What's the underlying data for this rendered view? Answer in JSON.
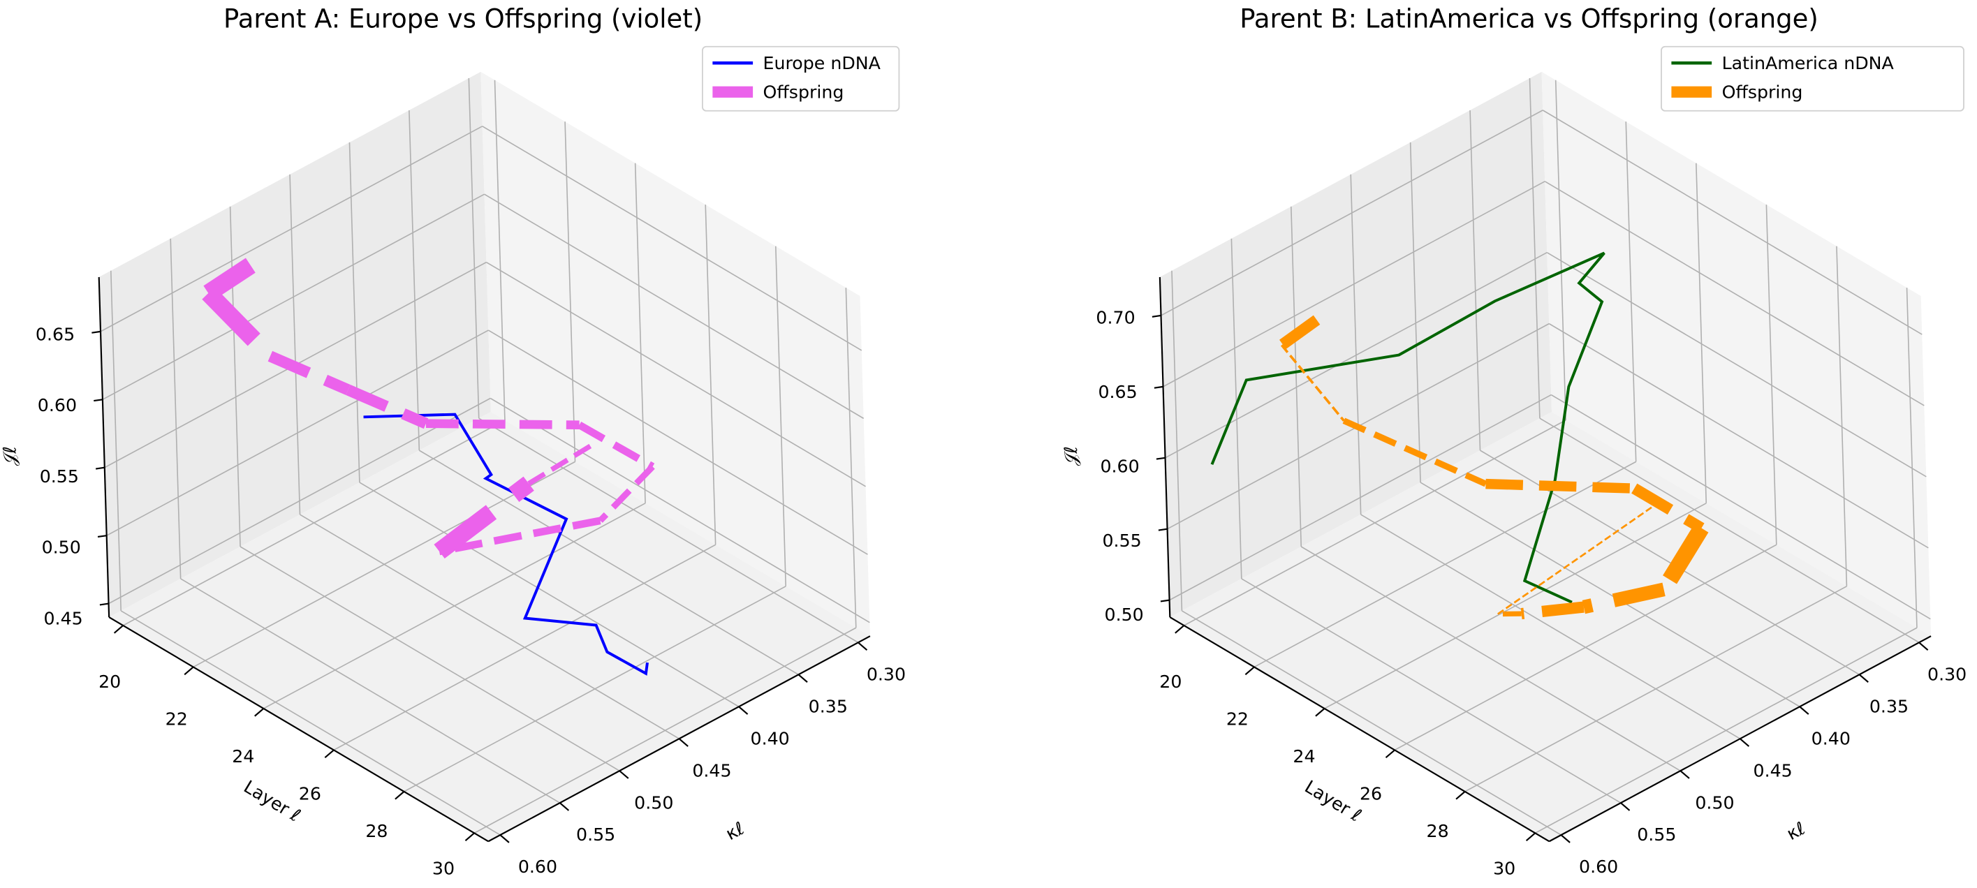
{
  "chart_data": [
    {
      "type": "line3d",
      "title": "Parent A: Europe  vs Offspring (violet)",
      "xlabel": "Layer ℓ",
      "ylabel": "κℓ",
      "zlabel": "𝒥ℓ",
      "xlim": [
        19.6,
        30.4
      ],
      "ylim": [
        0.29,
        0.61
      ],
      "zlim": [
        0.44,
        0.69
      ],
      "xticks": [
        "20",
        "22",
        "24",
        "26",
        "28",
        "30"
      ],
      "yticks": [
        "0.30",
        "0.35",
        "0.40",
        "0.45",
        "0.50",
        "0.55",
        "0.60"
      ],
      "zticks": [
        "0.45",
        "0.50",
        "0.55",
        "0.60",
        "0.65"
      ],
      "grid": true,
      "legend": "top-right",
      "series": [
        {
          "name": "Europe nDNA",
          "color": "#0000ff",
          "style": "solid",
          "layer": [
            21,
            22,
            23,
            24,
            25,
            26,
            27,
            28,
            29,
            30
          ],
          "kappa": [
            0.435,
            0.388,
            0.388,
            0.421,
            0.384,
            0.449,
            0.419,
            0.439,
            0.436,
            0.463
          ],
          "J": [
            0.526,
            0.521,
            0.492,
            0.52,
            0.488,
            0.461,
            0.457,
            0.462,
            0.46,
            0.496
          ]
        },
        {
          "name": "Offspring",
          "color": "#eb62eb",
          "style": "dashed",
          "layer": [
            20,
            21,
            22,
            23,
            24,
            25,
            26,
            27,
            28,
            29,
            30
          ],
          "kappa": [
            0.496,
            0.56,
            0.539,
            0.504,
            0.469,
            0.371,
            0.34,
            0.413,
            0.575,
            0.528,
            0.503
          ],
          "J": [
            0.651,
            0.676,
            0.635,
            0.609,
            0.583,
            0.551,
            0.521,
            0.531,
            0.6,
            0.643,
            0.675
          ]
        }
      ]
    },
    {
      "type": "line3d",
      "title": "Parent B: LatinAmerica  vs Offspring (orange)",
      "xlabel": "Layer ℓ",
      "ylabel": "κℓ",
      "zlabel": "𝒥ℓ",
      "xlim": [
        19.6,
        30.4
      ],
      "ylim": [
        0.29,
        0.61
      ],
      "zlim": [
        0.488,
        0.727
      ],
      "xticks": [
        "20",
        "22",
        "24",
        "26",
        "28",
        "30"
      ],
      "yticks": [
        "0.30",
        "0.35",
        "0.40",
        "0.45",
        "0.50",
        "0.55",
        "0.60"
      ],
      "zticks": [
        "0.50",
        "0.55",
        "0.60",
        "0.65",
        "0.70"
      ],
      "grid": true,
      "legend": "top-right",
      "series": [
        {
          "name": "LatinAmerica nDNA",
          "color": "#006400",
          "style": "solid",
          "layer": [
            20,
            21,
            22,
            23,
            24,
            25,
            26,
            27,
            28,
            29,
            30
          ],
          "kappa": [
            0.583,
            0.581,
            0.483,
            0.431,
            0.368,
            0.418,
            0.428,
            0.486,
            0.528,
            0.584,
            0.574
          ],
          "J": [
            0.589,
            0.662,
            0.65,
            0.679,
            0.699,
            0.715,
            0.721,
            0.702,
            0.67,
            0.639,
            0.634
          ]
        },
        {
          "name": "Offspring",
          "color": "#ff9400",
          "style": "dashed",
          "layer": [
            20,
            21,
            22,
            23,
            24,
            25,
            26,
            27,
            28,
            29,
            30
          ],
          "kappa": [
            0.493,
            0.551,
            0.53,
            0.443,
            0.349,
            0.323,
            0.384,
            0.479,
            0.559,
            0.607,
            0.506
          ],
          "J": [
            0.65,
            0.673,
            0.625,
            0.556,
            0.525,
            0.5,
            0.499,
            0.544,
            0.59,
            0.626,
            0.67
          ]
        }
      ]
    }
  ]
}
